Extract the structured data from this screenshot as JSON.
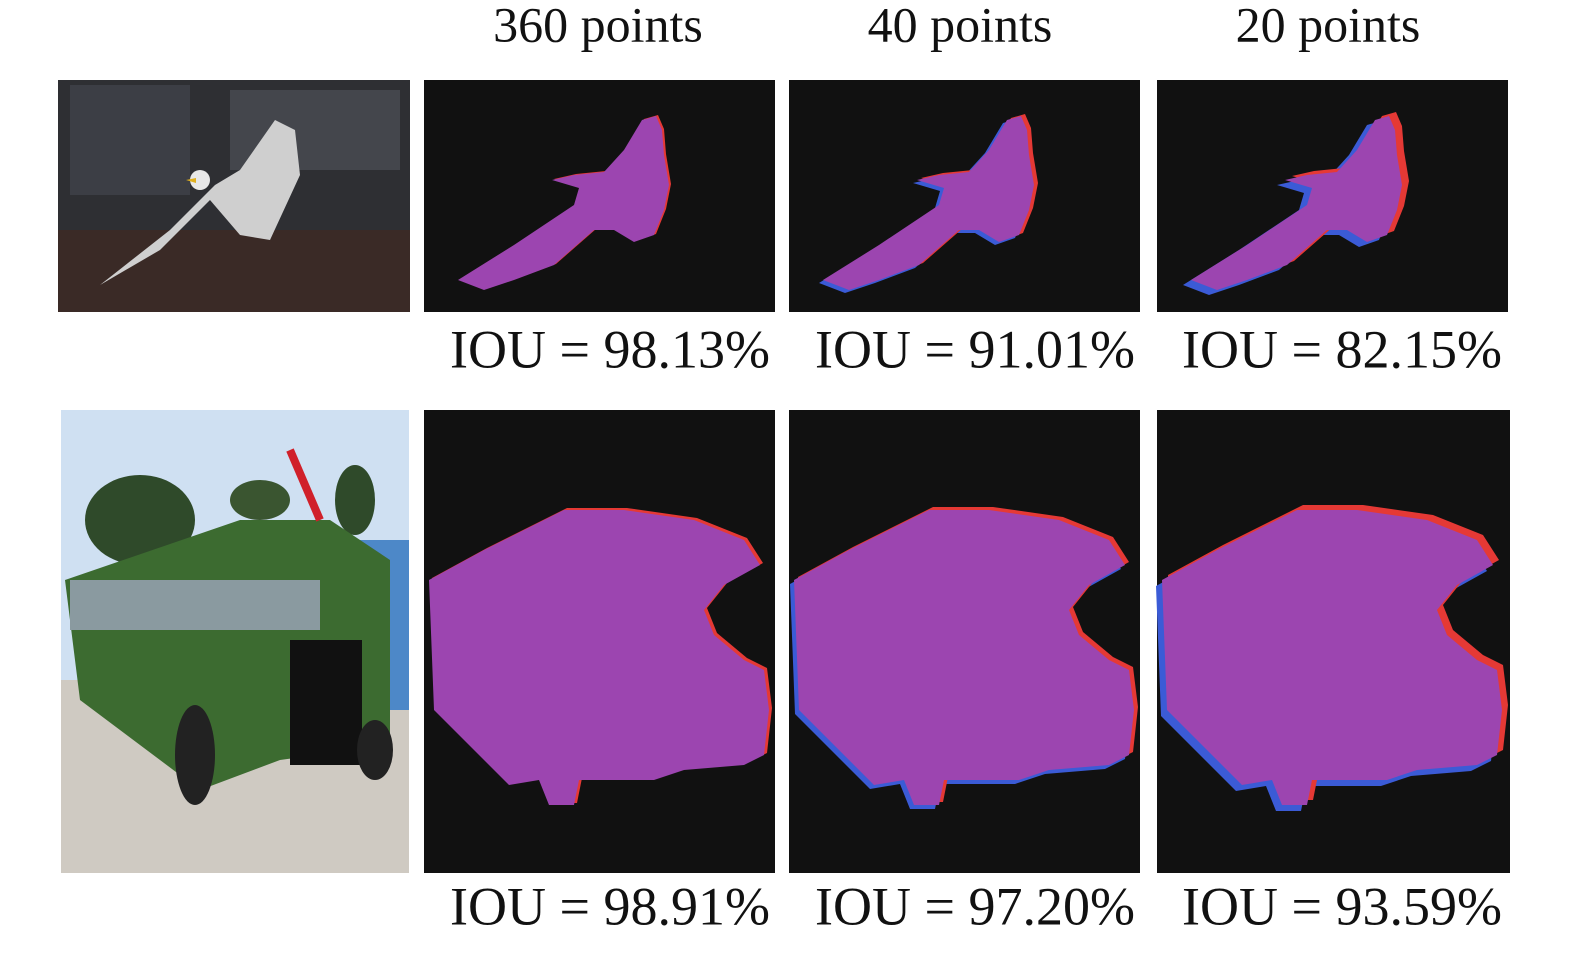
{
  "columns": [
    "360 points",
    "40 points",
    "20 points"
  ],
  "rows": [
    {
      "iou": [
        "IOU = 98.13%",
        "IOU = 91.01%",
        "IOU = 82.15%"
      ]
    },
    {
      "iou": [
        "IOU = 98.91%",
        "IOU = 97.20%",
        "IOU = 93.59%"
      ]
    }
  ]
}
